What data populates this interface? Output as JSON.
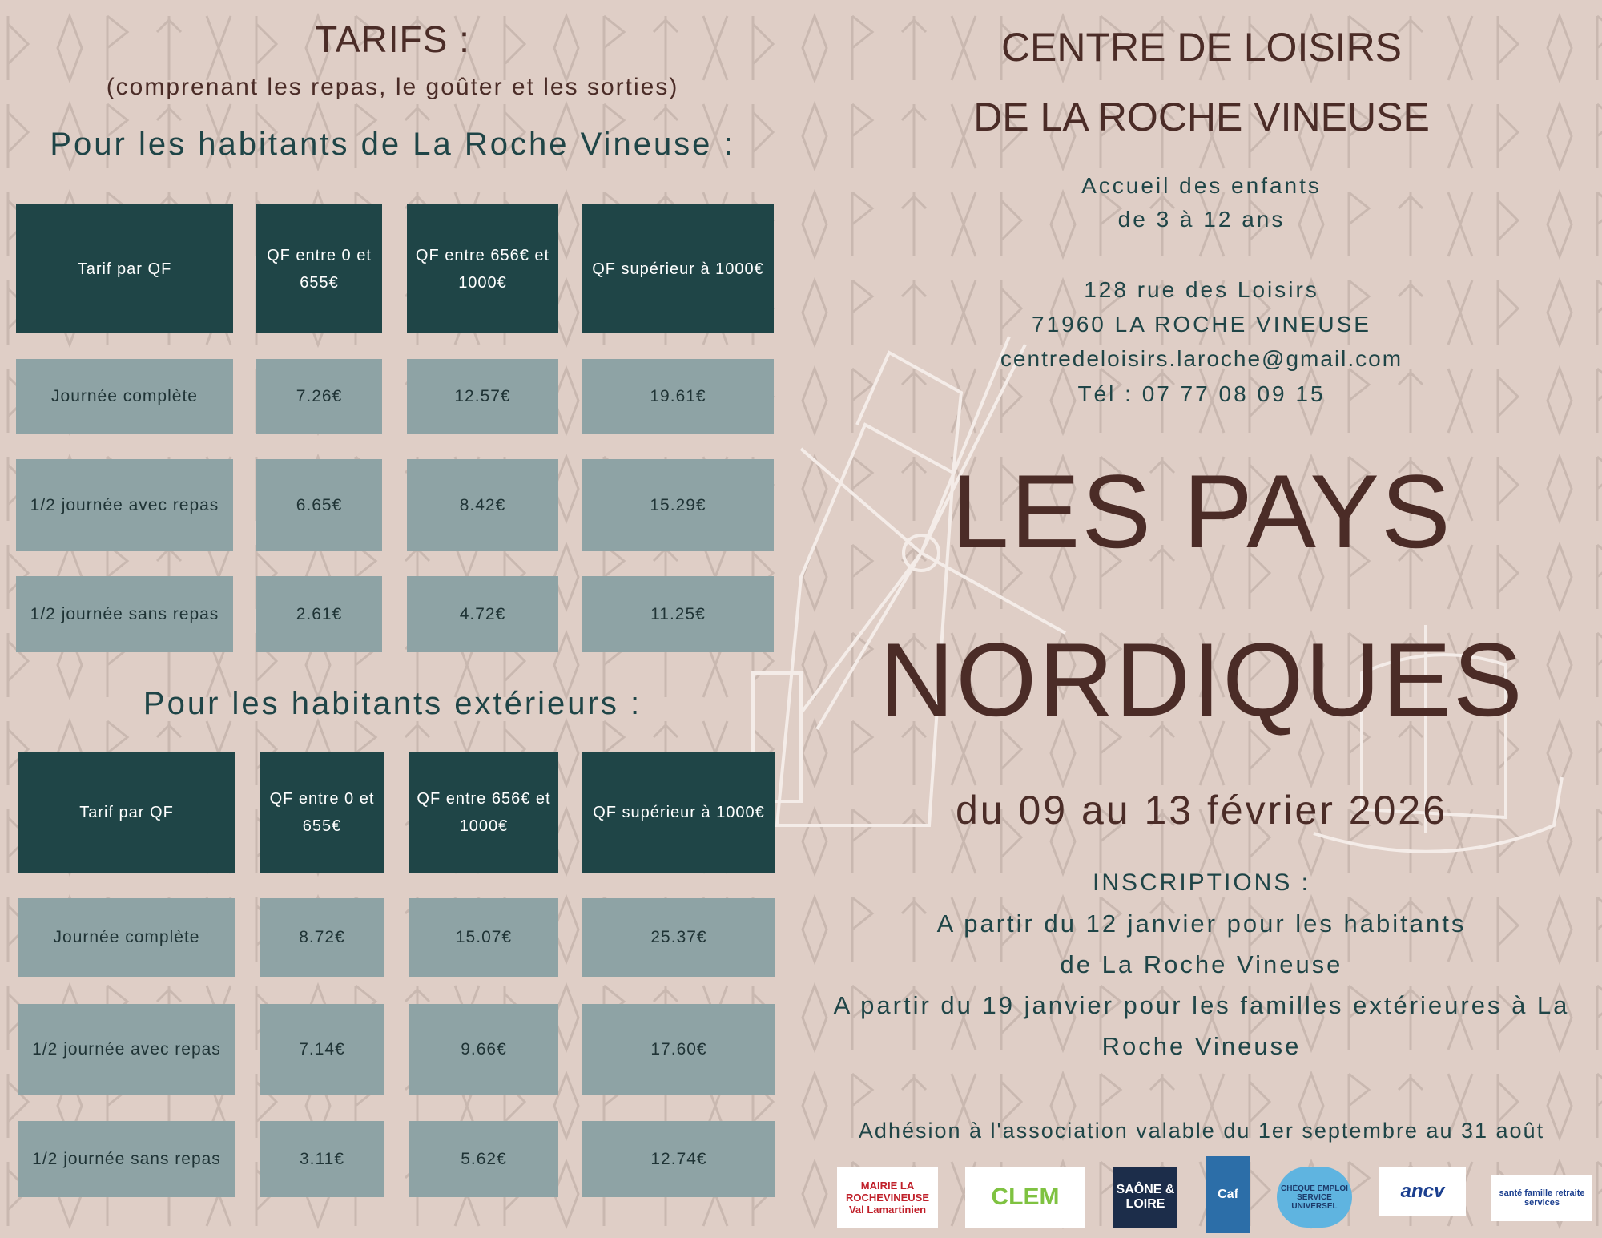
{
  "tarifs": {
    "title": "TARIFS :",
    "subtitle": "(comprenant les repas, le goûter et les sorties)",
    "residents_heading": "Pour les habitants de La Roche Vineuse :",
    "external_heading": "Pour les habitants extérieurs :",
    "residents_table": {
      "headers": [
        "Tarif par QF",
        "QF entre 0 et 655€",
        "QF entre 656€ et 1000€",
        "QF supérieur à 1000€"
      ],
      "rows": [
        [
          "Journée complète",
          "7.26€",
          "12.57€",
          "19.61€"
        ],
        [
          "1/2 journée avec repas",
          "6.65€",
          "8.42€",
          "15.29€"
        ],
        [
          "1/2 journée sans repas",
          "2.61€",
          "4.72€",
          "11.25€"
        ]
      ]
    },
    "external_table": {
      "headers": [
        "Tarif par QF",
        "QF entre 0 et 655€",
        "QF entre 656€ et 1000€",
        "QF supérieur à 1000€"
      ],
      "rows": [
        [
          "Journée complète",
          "8.72€",
          "15.07€",
          "25.37€"
        ],
        [
          "1/2 journée avec repas",
          "7.14€",
          "9.66€",
          "17.60€"
        ],
        [
          "1/2 journée sans repas",
          "3.11€",
          "5.62€",
          "12.74€"
        ]
      ]
    }
  },
  "centre": {
    "name_line1": "CENTRE DE LOISIRS",
    "name_line2": "DE LA ROCHE VINEUSE",
    "accueil_line1": "Accueil des enfants",
    "accueil_line2": "de 3 à 12 ans",
    "address_line1": "128 rue des Loisirs",
    "address_line2": "71960 LA ROCHE VINEUSE",
    "email": "centredeloisirs.laroche@gmail.com",
    "phone": "Tél : 07 77 08 09 15"
  },
  "theme": {
    "title_line1": "LES PAYS",
    "title_line2": "NORDIQUES",
    "dates": "du 09 au 13 février 2026"
  },
  "inscriptions": {
    "heading": "INSCRIPTIONS :",
    "line1": "A partir du 12 janvier pour les habitants",
    "line2": "de La Roche Vineuse",
    "line3": "A partir du 19 janvier pour les familles extérieures à La",
    "line4": "Roche Vineuse"
  },
  "adhesion": "Adhésion à l'association valable du 1er septembre au 31 août",
  "logos": [
    {
      "name": "mairie",
      "text": "MAIRIE LA ROCHEVINEUSE Val Lamartinien"
    },
    {
      "name": "clem",
      "text": "CLEM"
    },
    {
      "name": "saone-et-loire",
      "text": "SAÔNE & LOIRE"
    },
    {
      "name": "caf",
      "text": "Caf"
    },
    {
      "name": "cesu",
      "text": "CHÈQUE EMPLOI SERVICE UNIVERSEL"
    },
    {
      "name": "ancv",
      "text": "ancv"
    },
    {
      "name": "msa",
      "text": "santé famille retraite services"
    }
  ],
  "colors": {
    "background": "#dfcec6",
    "header_cell": "#1f4547",
    "body_cell": "#8ea3a5",
    "title_brown": "#4b2c27",
    "text_teal": "#1f4547"
  }
}
